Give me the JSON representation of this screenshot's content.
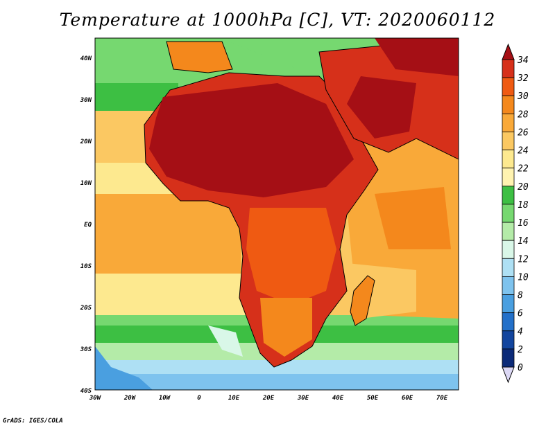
{
  "title": "Temperature at 1000hPa [C], VT: 2020060112",
  "credit": "GrADS: IGES/COLA",
  "map": {
    "lon_ticks": [
      "30W",
      "20W",
      "10W",
      "0",
      "10E",
      "20E",
      "30E",
      "40E",
      "50E",
      "60E",
      "70E"
    ],
    "lat_ticks": [
      "40N",
      "30N",
      "20N",
      "10N",
      "EQ",
      "10S",
      "20S",
      "30S",
      "40S"
    ]
  },
  "colorbar": {
    "levels": [
      "34",
      "32",
      "30",
      "28",
      "26",
      "24",
      "22",
      "20",
      "18",
      "16",
      "14",
      "12",
      "10",
      "8",
      "6",
      "4",
      "2",
      "0"
    ],
    "colors": [
      "#a50f15",
      "#d6301a",
      "#ef5a12",
      "#f4881c",
      "#f9a939",
      "#fbc862",
      "#fde98f",
      "#fff3b0",
      "#3dbf43",
      "#76d870",
      "#b4eba8",
      "#d9f7e8",
      "#aee0f4",
      "#7ec3ee",
      "#4a9fe0",
      "#2370c9",
      "#12459e",
      "#0b2a78",
      "#0a1566"
    ],
    "top_color": "#a50f15",
    "bottom_color": "#dcd8f5"
  }
}
